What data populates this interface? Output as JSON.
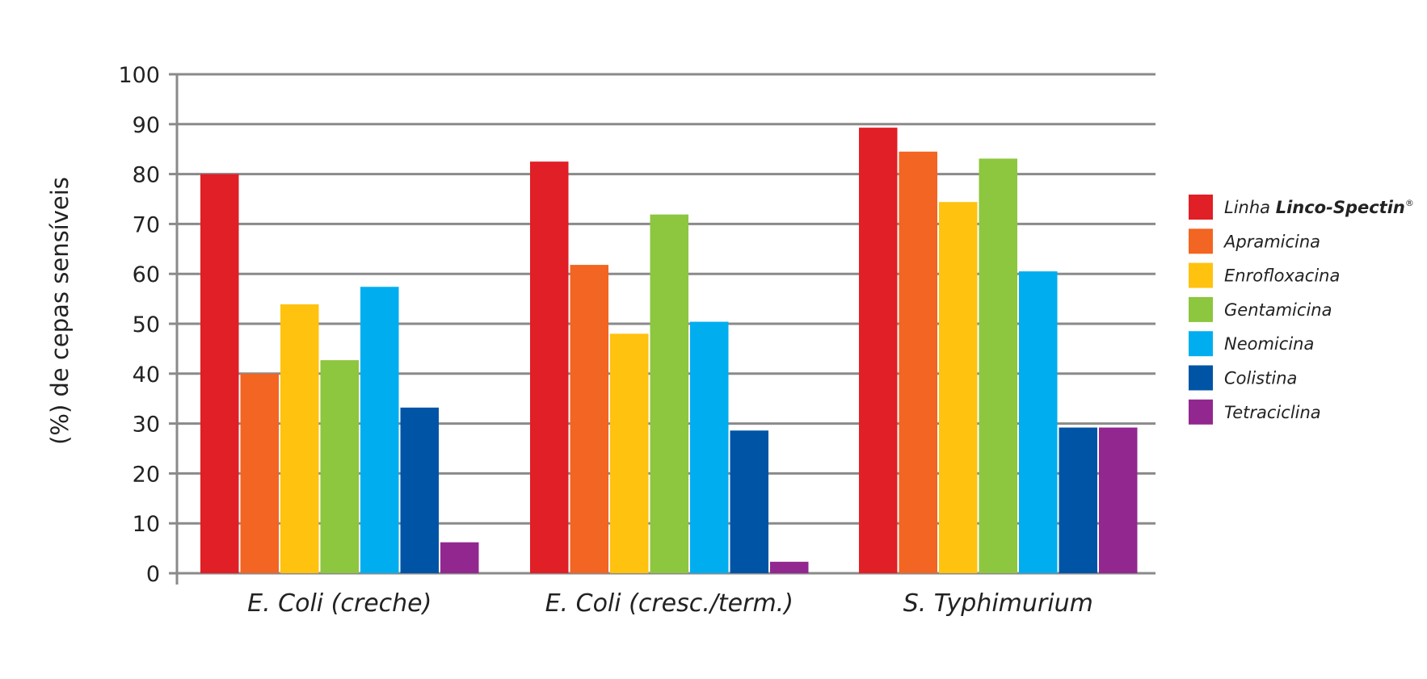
{
  "chart_data": {
    "type": "bar",
    "title": "",
    "xlabel": "",
    "ylabel": "(%) de cepas sensíveis",
    "ylim": [
      0,
      100
    ],
    "yticks": [
      0,
      10,
      20,
      30,
      40,
      50,
      60,
      70,
      80,
      90,
      100
    ],
    "grid": true,
    "legend_position": "right",
    "categories": [
      "E. Coli (creche)",
      "E. Coli (cresc./term.)",
      "S. Typhimurium"
    ],
    "series": [
      {
        "name": "Linha Linco-Spectin®",
        "name_prefix": "Linha",
        "name_brand": "Linco-Spectin",
        "name_mark": "®",
        "color": "#e01f26",
        "values": [
          80,
          82.5,
          89.3
        ]
      },
      {
        "name": "Apramicina",
        "color": "#f26522",
        "values": [
          40,
          61.8,
          84.5
        ]
      },
      {
        "name": "Enrofloxacina",
        "color": "#ffc20e",
        "values": [
          53.9,
          48,
          74.4
        ]
      },
      {
        "name": "Gentamicina",
        "color": "#8dc63f",
        "values": [
          42.7,
          71.9,
          83.1
        ]
      },
      {
        "name": "Neomicina",
        "color": "#00aeef",
        "values": [
          57.4,
          50.4,
          60.5
        ]
      },
      {
        "name": "Colistina",
        "color": "#0054a6",
        "values": [
          33.2,
          28.6,
          29.2
        ]
      },
      {
        "name": "Tetraciclina",
        "color": "#92278f",
        "values": [
          6.2,
          2.3,
          29.2
        ]
      }
    ]
  }
}
